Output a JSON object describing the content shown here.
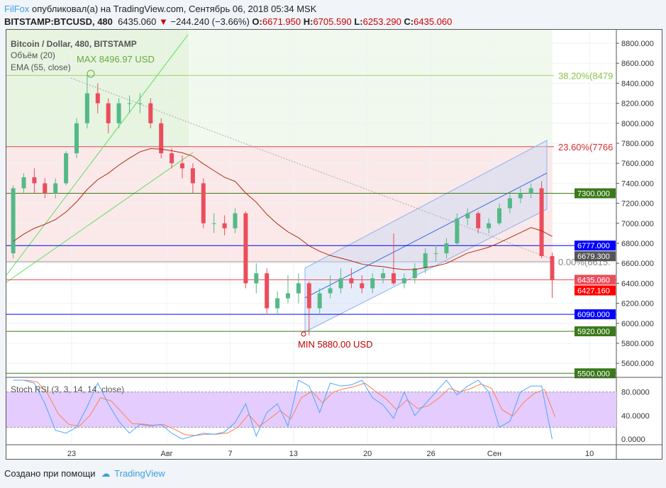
{
  "header": {
    "user": "FilFox",
    "published": "опубликовал(а) на TradingView.com, Сентябрь 06, 2018 05:34 MSK",
    "symbol": "BITSTAMP:BTCUSD, 480",
    "last": "6435.060",
    "change": "−244.240 (−3.66%)",
    "o_label": "O:",
    "o": "6671.950",
    "h_label": "H:",
    "h": "6705.590",
    "l_label": "L:",
    "l": "6253.290",
    "c_label": "C:",
    "c": "6435.060"
  },
  "legend": {
    "title": "Bitcoin / Dollar, 480, BITSTAMP",
    "volume": "Объём (20)",
    "ema": "EMA (55, close)",
    "rsi": "Stoch RSI (3, 3, 14, 14, close)"
  },
  "footer": {
    "made_with": "Создано при помощи",
    "brand": "TradingView"
  },
  "colors": {
    "up": "#53b987",
    "down": "#eb4d5c",
    "ema": "#b22a10",
    "rsi_k": "#4da6ff",
    "rsi_d": "#ff7f50",
    "rsi_band": "#e4ccff"
  },
  "chart_data": [
    {
      "type": "candlestick",
      "title": "Bitcoin / Dollar, 480, BITSTAMP",
      "ylim": [
        5450,
        8950
      ],
      "yticks": [
        "8800.000",
        "8600.000",
        "8400.000",
        "8200.000",
        "8000.000",
        "7800.000",
        "7600.000",
        "7400.000",
        "7200.000",
        "7000.000",
        "6800.000",
        "6600.000",
        "6400.000",
        "6200.000",
        "6000.000",
        "5800.000",
        "5600.000"
      ],
      "xticks": [
        {
          "label": "23",
          "date": "2018-07-23"
        },
        {
          "label": "Авг",
          "date": "2018-08-01"
        },
        {
          "label": "7",
          "date": "2018-08-07"
        },
        {
          "label": "13",
          "date": "2018-08-13"
        },
        {
          "label": "20",
          "date": "2018-08-20"
        },
        {
          "label": "26",
          "date": "2018-08-26"
        },
        {
          "label": "Сен",
          "date": "2018-09-01"
        },
        {
          "label": "10",
          "date": "2018-09-10"
        }
      ],
      "start_date": "2018-07-17",
      "ohlc": [
        [
          6700,
          7380,
          6650,
          7350
        ],
        [
          7350,
          7500,
          7300,
          7460
        ],
        [
          7460,
          7550,
          7300,
          7400
        ],
        [
          7400,
          7450,
          7250,
          7300
        ],
        [
          7300,
          7450,
          7250,
          7400
        ],
        [
          7400,
          7720,
          7380,
          7700
        ],
        [
          7700,
          8050,
          7650,
          8000
        ],
        [
          8000,
          8480,
          7950,
          8300
        ],
        [
          8300,
          8400,
          8100,
          8200
        ],
        [
          8200,
          8250,
          7900,
          8000
        ],
        [
          8000,
          8250,
          7950,
          8200
        ],
        [
          8200,
          8280,
          8100,
          8200
        ],
        [
          8200,
          8300,
          8100,
          8200
        ],
        [
          8200,
          8250,
          7950,
          8000
        ],
        [
          8000,
          8050,
          7650,
          7700
        ],
        [
          7700,
          7750,
          7550,
          7600
        ],
        [
          7600,
          7680,
          7450,
          7550
        ],
        [
          7550,
          7600,
          7300,
          7400
        ],
        [
          7400,
          7450,
          6950,
          7000
        ],
        [
          7000,
          7100,
          6900,
          7000
        ],
        [
          7000,
          7080,
          6880,
          6950
        ],
        [
          6950,
          7150,
          6900,
          7100
        ],
        [
          7100,
          7120,
          6350,
          6400
        ],
        [
          6400,
          6600,
          6300,
          6500
        ],
        [
          6500,
          6550,
          6100,
          6150
        ],
        [
          6150,
          6320,
          6100,
          6250
        ],
        [
          6250,
          6480,
          6200,
          6300
        ],
        [
          6300,
          6500,
          6200,
          6400
        ],
        [
          6400,
          6420,
          5880,
          6150
        ],
        [
          6150,
          6350,
          6100,
          6300
        ],
        [
          6300,
          6480,
          6250,
          6350
        ],
        [
          6350,
          6550,
          6300,
          6450
        ],
        [
          6450,
          6550,
          6350,
          6400
        ],
        [
          6400,
          6480,
          6300,
          6350
        ],
        [
          6350,
          6500,
          6300,
          6450
        ],
        [
          6450,
          6550,
          6400,
          6500
        ],
        [
          6500,
          6900,
          6380,
          6400
        ],
        [
          6400,
          6500,
          6350,
          6450
        ],
        [
          6450,
          6600,
          6400,
          6550
        ],
        [
          6550,
          6750,
          6500,
          6700
        ],
        [
          6700,
          6780,
          6620,
          6700
        ],
        [
          6700,
          6850,
          6650,
          6800
        ],
        [
          6800,
          7100,
          6780,
          7050
        ],
        [
          7050,
          7150,
          6980,
          7100
        ],
        [
          7100,
          7120,
          6900,
          6950
        ],
        [
          6950,
          7050,
          6900,
          7000
        ],
        [
          7000,
          7200,
          6980,
          7150
        ],
        [
          7150,
          7300,
          7100,
          7250
        ],
        [
          7250,
          7350,
          7200,
          7300
        ],
        [
          7300,
          7400,
          7250,
          7350
        ],
        [
          7350,
          7420,
          6650,
          6672
        ],
        [
          6672,
          6706,
          6253,
          6435
        ]
      ],
      "ema_period": 55,
      "levels": [
        {
          "price": 7300,
          "label": "7300.000",
          "color": "#3a7a1a"
        },
        {
          "price": 6777,
          "label": "6777.000",
          "color": "#0000ff"
        },
        {
          "price": 6679.3,
          "label": "6679.300",
          "color": "#555555"
        },
        {
          "price": 6435.06,
          "label": "6435.060",
          "color": "#eb4d5c"
        },
        {
          "price": 6427.16,
          "label": "6427.160",
          "color": "#ff0000"
        },
        {
          "price": 6090,
          "label": "6090.000",
          "color": "#0000ff"
        },
        {
          "price": 5920,
          "label": "5920.000",
          "color": "#3a7a1a"
        },
        {
          "price": 5500,
          "label": "5500.000",
          "color": "#3a7a1a"
        }
      ],
      "fib": [
        {
          "price": 8479,
          "label": "38.20%(8479",
          "color": "#8bc34a"
        },
        {
          "price": 7766,
          "label": "23.60%(7766",
          "color": "#d32f2f"
        },
        {
          "price": 6615,
          "label": "0.00%(6615.",
          "color": "#888888"
        }
      ],
      "annotations": [
        {
          "label": "MAX 8496.97 USD",
          "price": 8496.97,
          "color": "#6aaa3a"
        },
        {
          "label": "MIN 5880.00 USD",
          "price": 5880,
          "color": "#c00000"
        }
      ]
    },
    {
      "type": "line",
      "title": "Stoch RSI (3, 3, 14, 14, close)",
      "ylim": [
        0,
        100
      ],
      "yticks": [
        "80.0000",
        "40.0000",
        "0.0000"
      ],
      "band": [
        20,
        80
      ],
      "k": [
        100,
        100,
        95,
        60,
        15,
        10,
        20,
        55,
        95,
        60,
        30,
        10,
        25,
        22,
        25,
        10,
        0,
        5,
        10,
        8,
        12,
        28,
        60,
        5,
        45,
        60,
        22,
        100,
        90,
        45,
        95,
        90,
        92,
        100,
        70,
        58,
        35,
        80,
        40,
        60,
        80,
        100,
        75,
        90,
        100,
        80,
        20,
        30,
        80,
        90,
        90,
        0
      ]
    }
  ]
}
